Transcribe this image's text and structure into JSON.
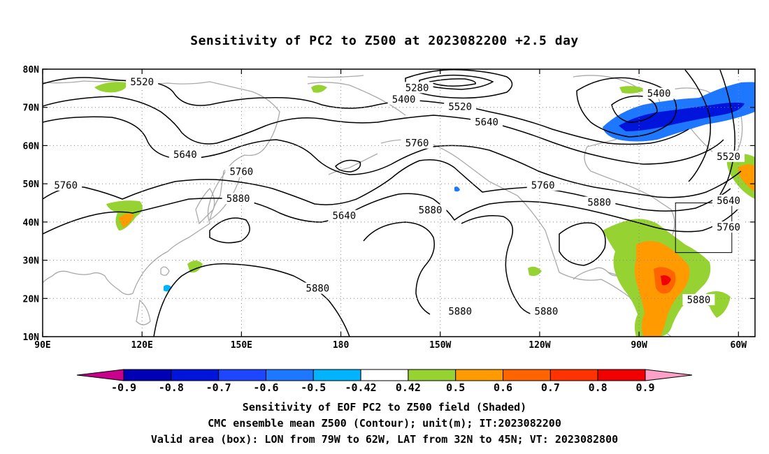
{
  "title": "Sensitivity of PC2 to Z500 at 2023082200 +2.5 day",
  "map": {
    "lon_range": [
      90,
      305
    ],
    "lat_range": [
      10,
      80
    ],
    "lat_labels": [
      "80N",
      "70N",
      "60N",
      "50N",
      "40N",
      "30N",
      "20N",
      "10N"
    ],
    "lat_values": [
      80,
      70,
      60,
      50,
      40,
      30,
      20,
      10
    ],
    "lon_labels": [
      "90E",
      "120E",
      "150E",
      "180",
      "150W",
      "120W",
      "90W",
      "60W"
    ],
    "lon_values": [
      90,
      120,
      150,
      180,
      210,
      240,
      270,
      300
    ],
    "valid_box": {
      "lon": [
        281,
        298
      ],
      "lat": [
        32,
        45
      ]
    },
    "contour_labels": [
      {
        "text": "5520",
        "lon": 120,
        "lat": 76.5
      },
      {
        "text": "5280",
        "lon": 203,
        "lat": 75
      },
      {
        "text": "5400",
        "lon": 199,
        "lat": 72
      },
      {
        "text": "5520",
        "lon": 216,
        "lat": 70
      },
      {
        "text": "5640",
        "lon": 224,
        "lat": 66
      },
      {
        "text": "5400",
        "lon": 276,
        "lat": 73.5
      },
      {
        "text": "5520",
        "lon": 297,
        "lat": 57
      },
      {
        "text": "5760",
        "lon": 203,
        "lat": 60.5
      },
      {
        "text": "5640",
        "lon": 133,
        "lat": 57.5
      },
      {
        "text": "5760",
        "lon": 150,
        "lat": 53
      },
      {
        "text": "5760",
        "lon": 97,
        "lat": 49.5
      },
      {
        "text": "5880",
        "lon": 149,
        "lat": 46
      },
      {
        "text": "5640",
        "lon": 181,
        "lat": 41.5
      },
      {
        "text": "5880",
        "lon": 207,
        "lat": 43
      },
      {
        "text": "5760",
        "lon": 241,
        "lat": 49.5
      },
      {
        "text": "5880",
        "lon": 258,
        "lat": 45
      },
      {
        "text": "5640",
        "lon": 297,
        "lat": 45.5
      },
      {
        "text": "5760",
        "lon": 297,
        "lat": 38.5
      },
      {
        "text": "5880",
        "lon": 173,
        "lat": 22.5
      },
      {
        "text": "5880",
        "lon": 216,
        "lat": 16.5
      },
      {
        "text": "5880",
        "lon": 242,
        "lat": 16.5
      },
      {
        "text": "5880",
        "lon": 288,
        "lat": 19.5
      }
    ]
  },
  "colorbar": {
    "labels": [
      "-0.9",
      "-0.8",
      "-0.7",
      "-0.6",
      "-0.5",
      "-0.42",
      "0.42",
      "0.5",
      "0.6",
      "0.7",
      "0.8",
      "0.9"
    ],
    "colors": [
      "#c8008c",
      "#0000b4",
      "#0014dc",
      "#1e46ff",
      "#1e78ff",
      "#00b4ff",
      "#ffffff",
      "#96d232",
      "#ff9b00",
      "#ff6400",
      "#ff3200",
      "#f00000",
      "#ffa0c8"
    ]
  },
  "captions": {
    "line1": "Sensitivity of EOF PC2 to Z500 field (Shaded)",
    "line2": "CMC ensemble mean Z500 (Contour); unit(m); IT:2023082200",
    "line3": "Valid area (box): LON from 79W to 62W, LAT from 32N to 45N; VT: 2023082800"
  }
}
